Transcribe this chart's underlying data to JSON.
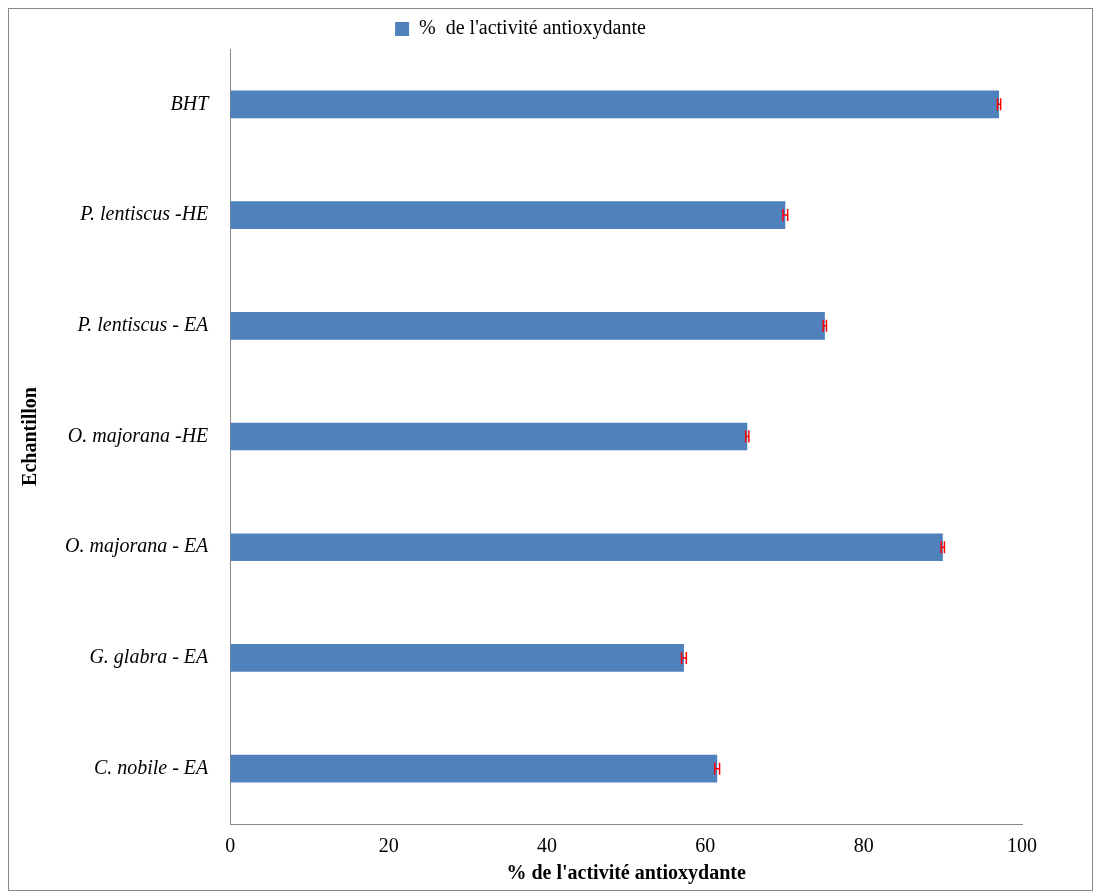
{
  "chart_data": {
    "type": "bar",
    "orientation": "horizontal",
    "xlabel": "% de l'activité antioxydante",
    "ylabel": "Echantillon",
    "categories": [
      "BHT",
      "P. lentiscus -HE",
      "P. lentiscus - EA",
      "O. majorana -HE",
      "O. majorana - EA",
      "G. glabra - EA",
      "C. nobile - EA"
    ],
    "series": [
      {
        "name": "%  de l'activité antioxydante",
        "color": "#4f81bd",
        "values": [
          97.1,
          70.1,
          75.1,
          65.3,
          90.0,
          57.3,
          61.5
        ],
        "errors": [
          0.2,
          0.3,
          0.2,
          0.2,
          0.2,
          0.3,
          0.3
        ]
      }
    ],
    "xlim": [
      0,
      100
    ],
    "xticks": [
      0,
      20,
      40,
      60,
      80,
      100
    ],
    "grid": false,
    "legend": "top"
  }
}
